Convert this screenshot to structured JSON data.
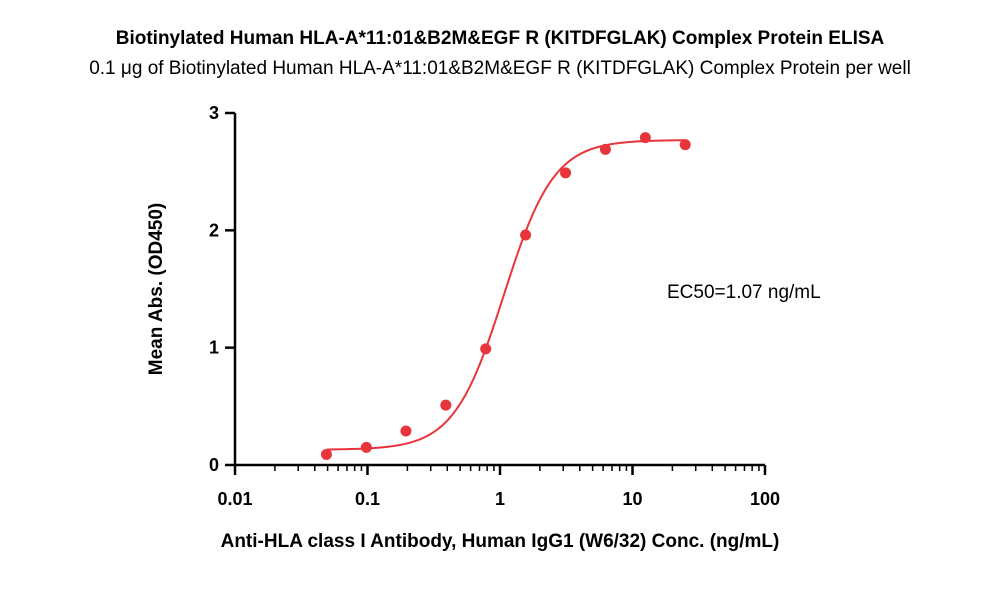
{
  "chart_data": {
    "type": "scatter",
    "title": "Biotinylated Human HLA-A*11:01&B2M&EGF R (KITDFGLAK) Complex Protein ELISA",
    "subtitle": "0.1 μg of Biotinylated Human HLA-A*11:01&B2M&EGF R (KITDFGLAK) Complex Protein per well",
    "xlabel": "Anti-HLA class I Antibody, Human IgG1 (W6/32) Conc. (ng/mL)",
    "ylabel": "Mean Abs. (OD450)",
    "x_scale": "log",
    "xlim": [
      0.01,
      100
    ],
    "ylim": [
      0,
      3
    ],
    "x_ticks": [
      "0.01",
      "0.1",
      "1",
      "10",
      "100"
    ],
    "x_tick_values": [
      0.01,
      0.1,
      1,
      10,
      100
    ],
    "y_ticks": [
      "0",
      "1",
      "2",
      "3"
    ],
    "y_tick_values": [
      0,
      1,
      2,
      3
    ],
    "grid": false,
    "series": [
      {
        "color": "#e8353b",
        "x": [
          0.049,
          0.098,
          0.195,
          0.39,
          0.78,
          1.56,
          3.125,
          6.25,
          12.5,
          25
        ],
        "y": [
          0.09,
          0.15,
          0.29,
          0.51,
          0.99,
          1.96,
          2.49,
          2.69,
          2.79,
          2.73
        ]
      }
    ],
    "fit": {
      "type": "4PL",
      "bottom": 0.13,
      "top": 2.77,
      "ec50": 1.07,
      "hill": 2.3,
      "color": "#e8353b"
    },
    "annotation": "EC50=1.07 ng/mL"
  }
}
